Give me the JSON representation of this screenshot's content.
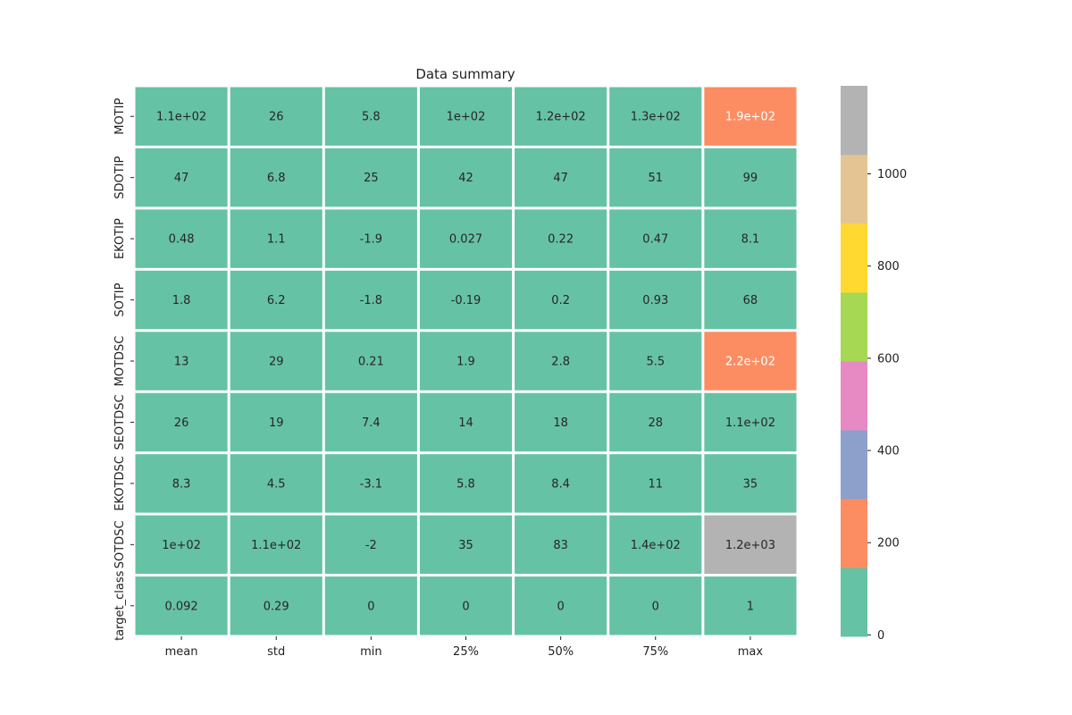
{
  "chart_data": {
    "type": "heatmap",
    "title": "Data summary",
    "columns": [
      "mean",
      "std",
      "min",
      "25%",
      "50%",
      "75%",
      "max"
    ],
    "rows": [
      "MOTIP",
      "SDOTIP",
      "EKOTIP",
      "SOTIP",
      "MOTDSC",
      "SEOTDSC",
      "EKOTDSC",
      "SOTDSC",
      "target_class"
    ],
    "values": [
      [
        111.08,
        25.65,
        5.81,
        100.93,
        115.08,
        127.09,
        192.62
      ],
      [
        46.55,
        6.84,
        24.77,
        42.38,
        46.95,
        51.02,
        98.78
      ],
      [
        0.478,
        1.064,
        -1.876,
        0.027,
        0.223,
        0.473,
        8.07
      ],
      [
        1.77,
        6.17,
        -1.79,
        -0.19,
        0.199,
        0.928,
        68.1
      ],
      [
        12.61,
        29.47,
        0.213,
        1.923,
        2.8,
        5.46,
        223.39
      ],
      [
        26.33,
        19.47,
        7.37,
        14.44,
        18.46,
        28.43,
        110.64
      ],
      [
        8.3,
        4.51,
        -3.14,
        5.78,
        8.43,
        10.7,
        34.54
      ],
      [
        104.86,
        106.51,
        -1.98,
        34.96,
        83.06,
        139.31,
        1191.0
      ],
      [
        0.092,
        0.289,
        0,
        0,
        0,
        0,
        1
      ]
    ],
    "labels": [
      [
        "1.1e+02",
        "26",
        "5.8",
        "1e+02",
        "1.2e+02",
        "1.3e+02",
        "1.9e+02"
      ],
      [
        "47",
        "6.8",
        "25",
        "42",
        "47",
        "51",
        "99"
      ],
      [
        "0.48",
        "1.1",
        "-1.9",
        "0.027",
        "0.22",
        "0.47",
        "8.1"
      ],
      [
        "1.8",
        "6.2",
        "-1.8",
        "-0.19",
        "0.2",
        "0.93",
        "68"
      ],
      [
        "13",
        "29",
        "0.21",
        "1.9",
        "2.8",
        "5.5",
        "2.2e+02"
      ],
      [
        "26",
        "19",
        "7.4",
        "14",
        "18",
        "28",
        "1.1e+02"
      ],
      [
        "8.3",
        "4.5",
        "-3.1",
        "5.8",
        "8.4",
        "11",
        "35"
      ],
      [
        "1e+02",
        "1.1e+02",
        "-2",
        "35",
        "83",
        "1.4e+02",
        "1.2e+03"
      ],
      [
        "0.092",
        "0.29",
        "0",
        "0",
        "0",
        "0",
        "1"
      ]
    ],
    "colormap": "Set2",
    "colors": [
      "#66c2a5",
      "#fc8d62",
      "#8da0cb",
      "#e78ac3",
      "#a6d854",
      "#ffd92f",
      "#e5c494",
      "#b3b3b3"
    ],
    "vmin": -3.14,
    "vmax": 1191.0,
    "colorbar_ticks": [
      "0",
      "200",
      "400",
      "600",
      "800",
      "1000"
    ],
    "colorbar_tick_values": [
      0,
      200,
      400,
      600,
      800,
      1000
    ],
    "grid": false,
    "legend": "colorbar right"
  }
}
